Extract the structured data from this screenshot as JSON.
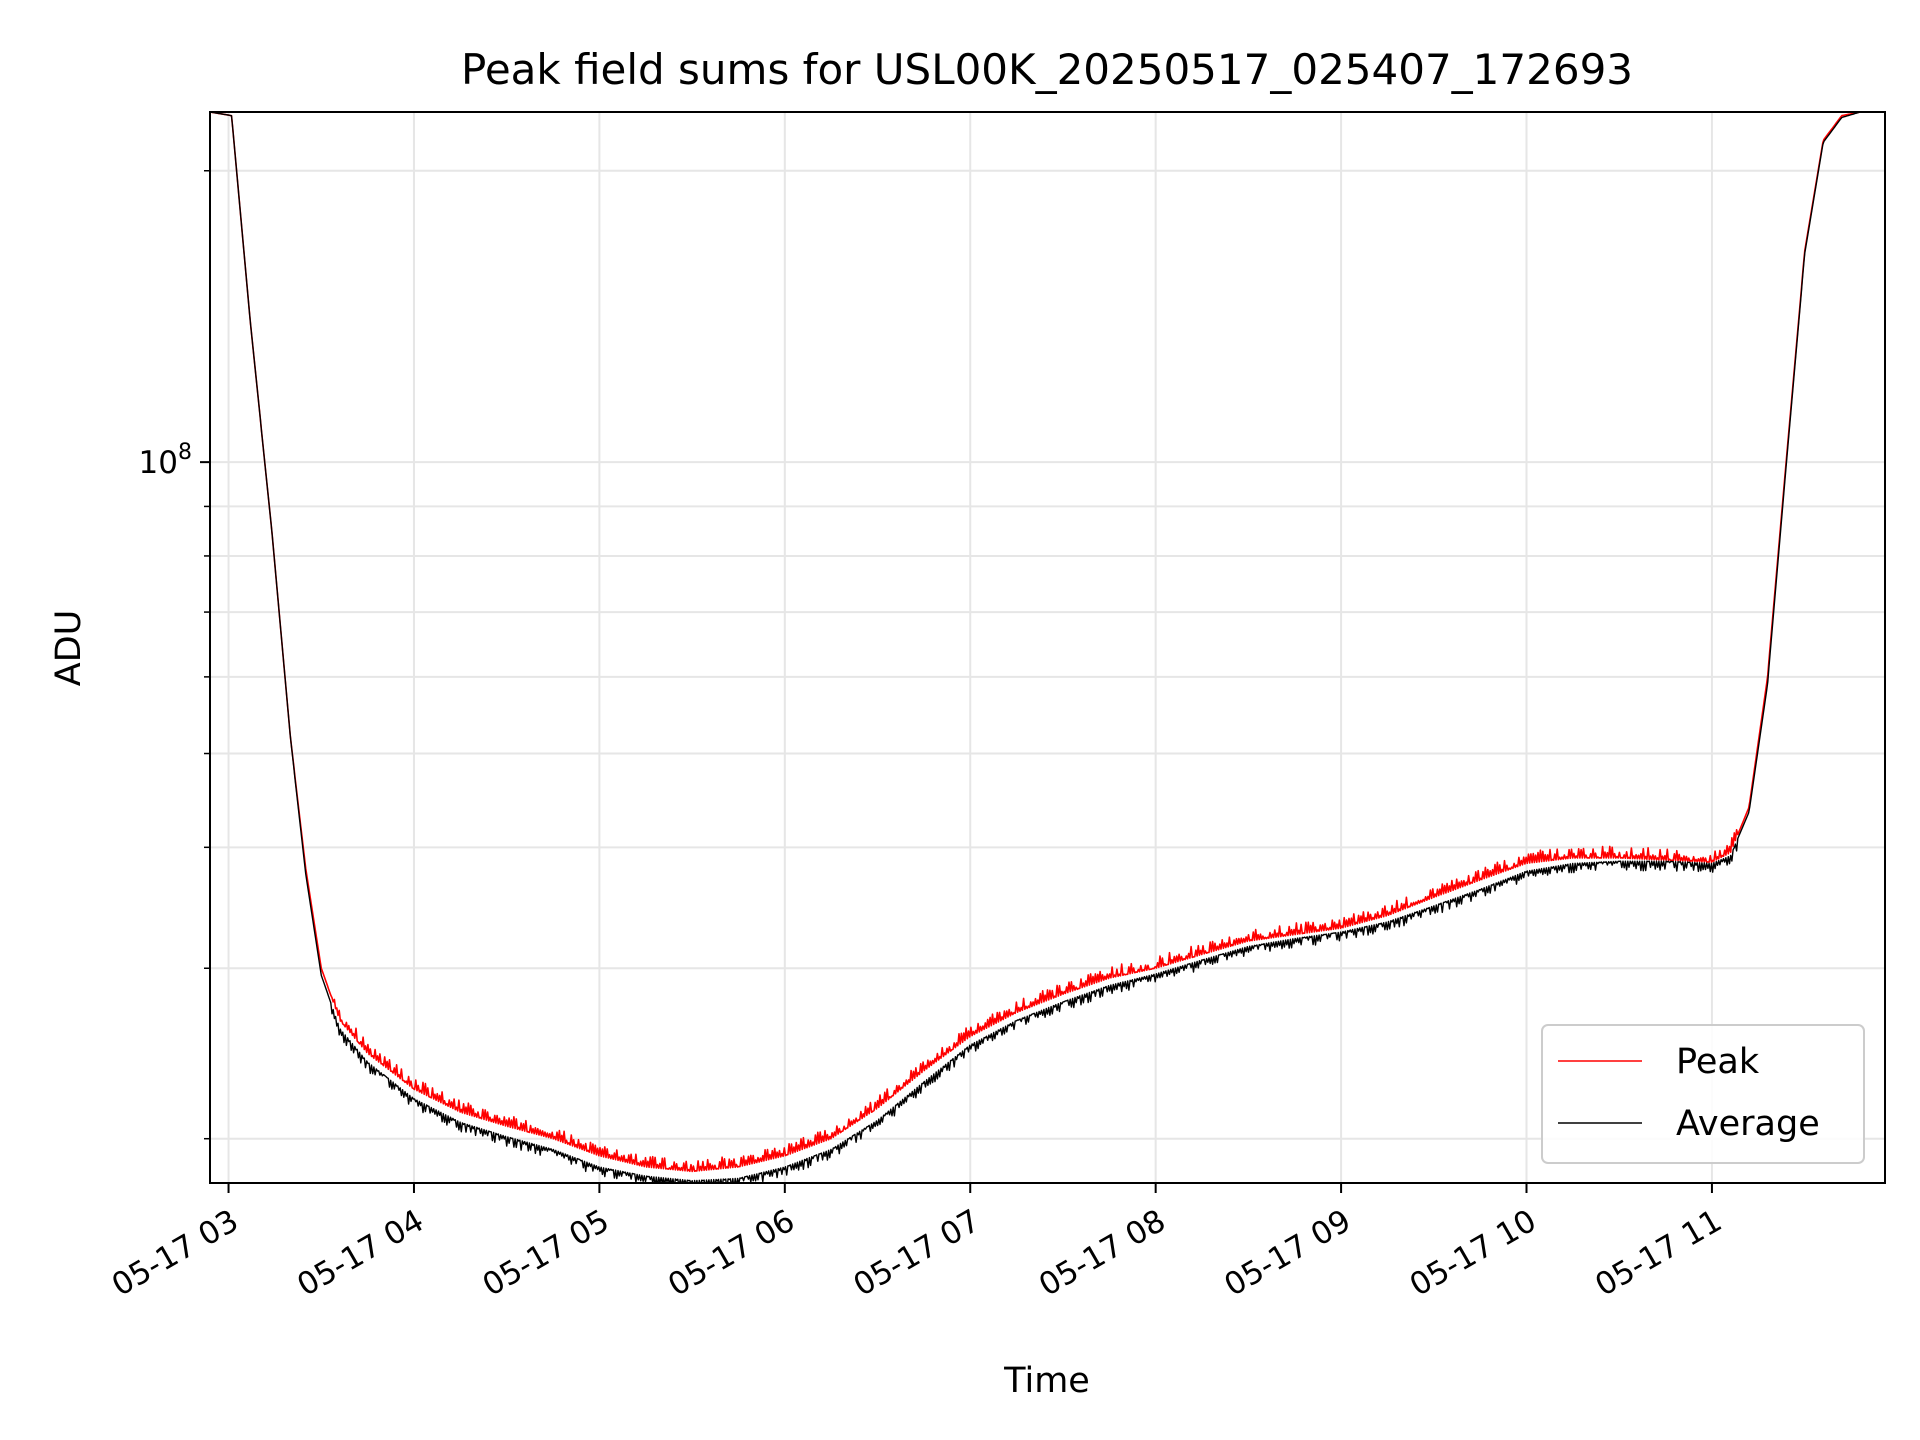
{
  "chart_data": {
    "type": "line",
    "title": "Peak field sums for USL00K_20250517_025407_172693",
    "xlabel": "Time",
    "ylabel": "ADU",
    "y_scale": "log",
    "y_tick_labels": [
      {
        "value": 100000000,
        "label": "10^8"
      }
    ],
    "ylim": [
      18000000,
      230000000
    ],
    "xlim": [
      "2025-05-17 02:54",
      "2025-05-17 11:56"
    ],
    "x_tick_labels": [
      "05-17 03",
      "05-17 04",
      "05-17 05",
      "05-17 06",
      "05-17 07",
      "05-17 08",
      "05-17 09",
      "05-17 10",
      "05-17 11"
    ],
    "grid": true,
    "legend_position": "lower right",
    "series": [
      {
        "name": "Peak",
        "color": "#ff0000",
        "x": [
          "2025-05-17 02:54",
          "2025-05-17 03:01",
          "2025-05-17 03:07",
          "2025-05-17 03:14",
          "2025-05-17 03:20",
          "2025-05-17 03:25",
          "2025-05-17 03:30",
          "2025-05-17 03:36",
          "2025-05-17 03:45",
          "2025-05-17 04:00",
          "2025-05-17 04:15",
          "2025-05-17 04:30",
          "2025-05-17 04:45",
          "2025-05-17 05:00",
          "2025-05-17 05:15",
          "2025-05-17 05:30",
          "2025-05-17 05:45",
          "2025-05-17 06:00",
          "2025-05-17 06:15",
          "2025-05-17 06:30",
          "2025-05-17 06:45",
          "2025-05-17 07:00",
          "2025-05-17 07:15",
          "2025-05-17 07:30",
          "2025-05-17 07:45",
          "2025-05-17 08:00",
          "2025-05-17 08:15",
          "2025-05-17 08:30",
          "2025-05-17 08:45",
          "2025-05-17 09:00",
          "2025-05-17 09:15",
          "2025-05-17 09:30",
          "2025-05-17 09:45",
          "2025-05-17 10:00",
          "2025-05-17 10:15",
          "2025-05-17 10:30",
          "2025-05-17 10:45",
          "2025-05-17 11:00",
          "2025-05-17 11:06",
          "2025-05-17 11:12",
          "2025-05-17 11:18",
          "2025-05-17 11:24",
          "2025-05-17 11:30",
          "2025-05-17 11:36",
          "2025-05-17 11:42",
          "2025-05-17 11:48",
          "2025-05-17 11:56"
        ],
        "y": [
          230000000,
          228000000,
          140000000,
          85000000,
          52000000,
          38000000,
          30000000,
          26500000,
          24500000,
          22500000,
          21300000,
          20600000,
          20000000,
          19200000,
          18700000,
          18500000,
          18700000,
          19200000,
          20000000,
          21500000,
          23500000,
          25500000,
          27000000,
          28200000,
          29300000,
          30000000,
          31000000,
          32000000,
          32500000,
          33000000,
          34000000,
          35500000,
          37000000,
          38500000,
          39000000,
          39000000,
          38800000,
          38600000,
          39500000,
          44000000,
          60000000,
          100000000,
          165000000,
          215000000,
          228000000,
          230000000,
          230000000
        ]
      },
      {
        "name": "Average",
        "color": "#000000",
        "x": [
          "2025-05-17 02:54",
          "2025-05-17 03:01",
          "2025-05-17 03:07",
          "2025-05-17 03:14",
          "2025-05-17 03:20",
          "2025-05-17 03:25",
          "2025-05-17 03:30",
          "2025-05-17 03:36",
          "2025-05-17 03:45",
          "2025-05-17 04:00",
          "2025-05-17 04:15",
          "2025-05-17 04:30",
          "2025-05-17 04:45",
          "2025-05-17 05:00",
          "2025-05-17 05:15",
          "2025-05-17 05:30",
          "2025-05-17 05:45",
          "2025-05-17 06:00",
          "2025-05-17 06:15",
          "2025-05-17 06:30",
          "2025-05-17 06:45",
          "2025-05-17 07:00",
          "2025-05-17 07:15",
          "2025-05-17 07:30",
          "2025-05-17 07:45",
          "2025-05-17 08:00",
          "2025-05-17 08:15",
          "2025-05-17 08:30",
          "2025-05-17 08:45",
          "2025-05-17 09:00",
          "2025-05-17 09:15",
          "2025-05-17 09:30",
          "2025-05-17 09:45",
          "2025-05-17 10:00",
          "2025-05-17 10:15",
          "2025-05-17 10:30",
          "2025-05-17 10:45",
          "2025-05-17 11:00",
          "2025-05-17 11:06",
          "2025-05-17 11:12",
          "2025-05-17 11:18",
          "2025-05-17 11:24",
          "2025-05-17 11:30",
          "2025-05-17 11:36",
          "2025-05-17 11:42",
          "2025-05-17 11:48",
          "2025-05-17 11:56"
        ],
        "y": [
          230000000,
          228000000,
          140000000,
          85000000,
          52000000,
          37500000,
          29500000,
          26000000,
          24000000,
          22000000,
          20800000,
          20100000,
          19500000,
          18700000,
          18300000,
          18100000,
          18200000,
          18700000,
          19500000,
          20900000,
          22900000,
          25000000,
          26500000,
          27700000,
          28800000,
          29600000,
          30600000,
          31600000,
          32200000,
          32700000,
          33500000,
          34800000,
          36200000,
          37800000,
          38500000,
          38700000,
          38700000,
          38500000,
          39200000,
          43500000,
          59000000,
          99000000,
          164000000,
          214000000,
          227000000,
          230000000,
          230000000
        ]
      }
    ]
  }
}
